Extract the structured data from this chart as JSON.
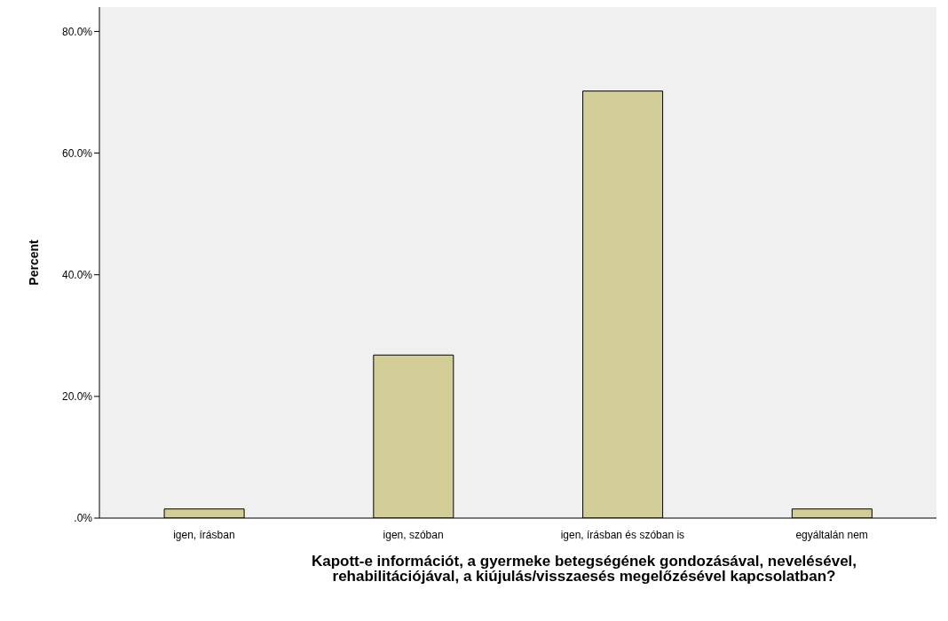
{
  "chart_data": {
    "type": "bar",
    "xlabel": "Kapott-e információt, a gyermeke betegségének gondozásával, nevelésével, rehabilitációjával, a kiújulás/visszaesés megelőzésével kapcsolatban?",
    "ylabel": "Percent",
    "categories": [
      "igen, írásban",
      "igen, szóban",
      "igen, írásban és szóban is",
      "egyáltalán nem"
    ],
    "values": [
      1.5,
      26.8,
      70.2,
      1.5
    ],
    "color": "#d3ce97",
    "ylim": [
      0,
      84
    ],
    "yticks": [
      {
        "value": 0,
        "label": ".0%"
      },
      {
        "value": 20,
        "label": "20.0%"
      },
      {
        "value": 40,
        "label": "40.0%"
      },
      {
        "value": 60,
        "label": "60.0%"
      },
      {
        "value": 80,
        "label": "80.0%"
      }
    ]
  }
}
